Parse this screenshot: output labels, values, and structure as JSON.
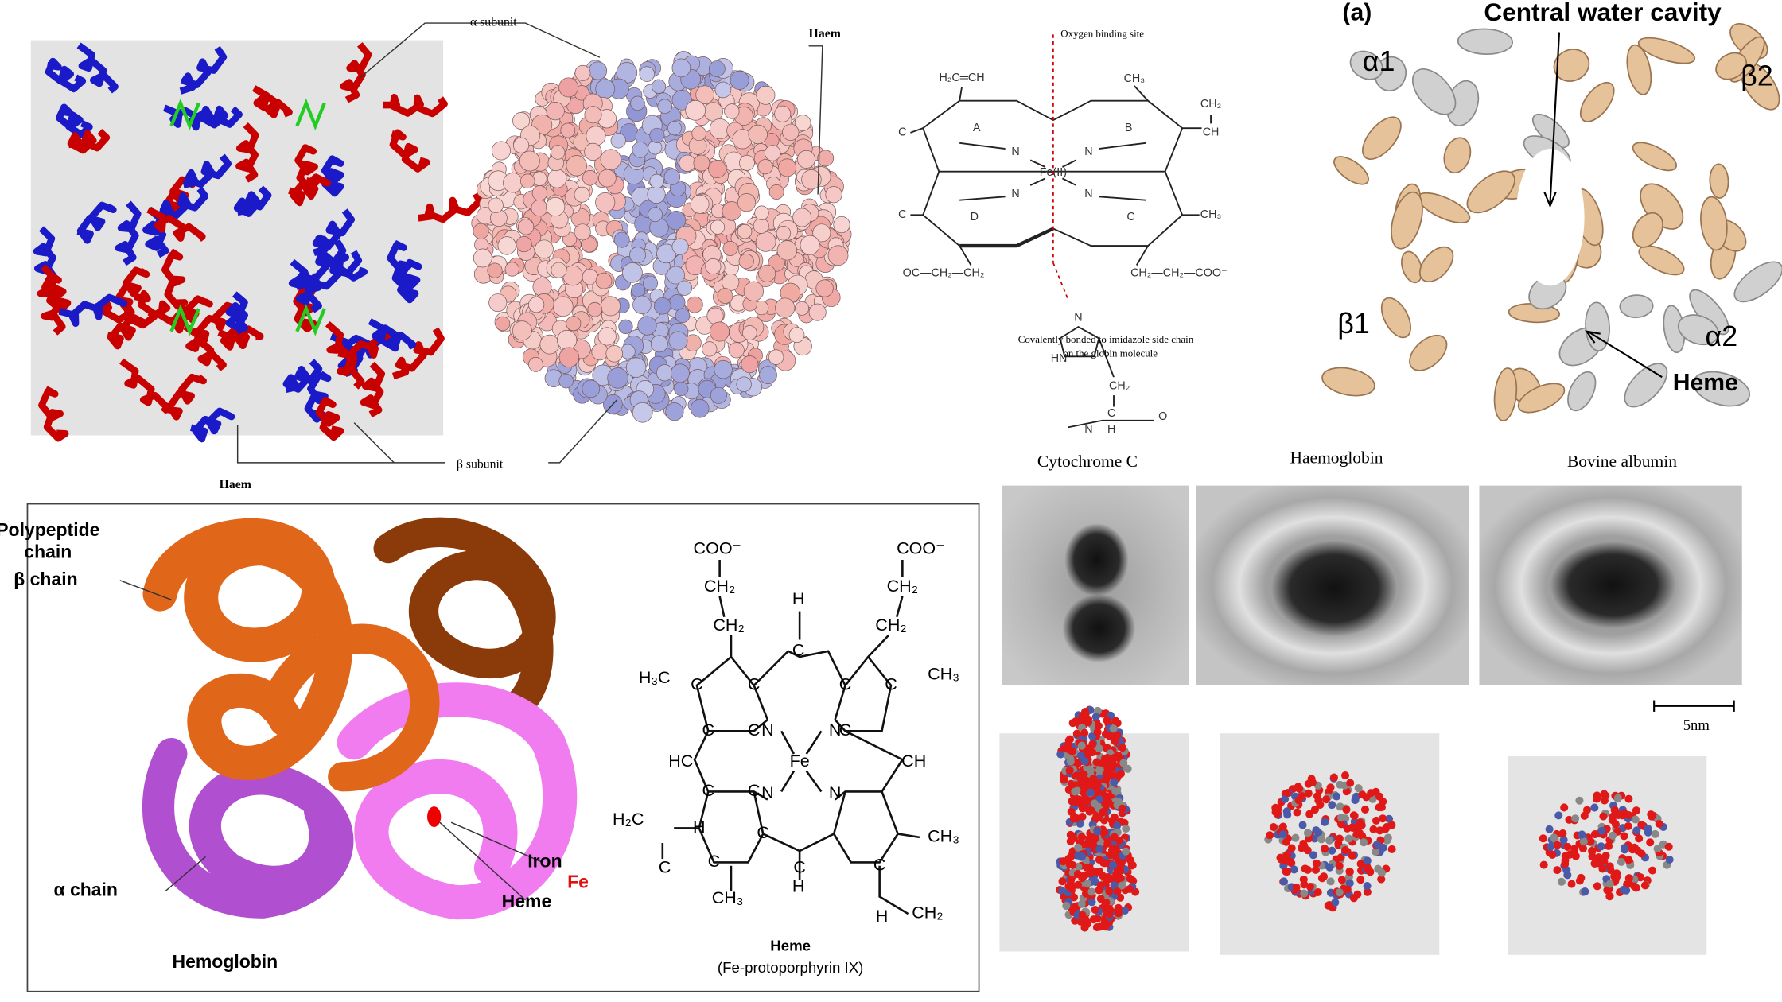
{
  "hemoglobin_ribbon": {
    "alpha_subunit": "α  subunit",
    "haem_top": "Haem",
    "haem_bottom": "Haem",
    "beta_subunit": "β  subunit"
  },
  "heme_structure_top": {
    "oxygen_site": "Oxygen binding site",
    "atoms": [
      "H₂C═CH",
      "CH₃",
      "A",
      "B",
      "CH₂",
      "CH",
      "C",
      "N",
      "N",
      "Fe(II)",
      "N",
      "N",
      "C",
      "D",
      "C",
      "CH₃",
      "OC—CH₂—CH₂",
      "CH₂—CH₂—COO⁻",
      "N",
      "HN",
      "CH₂",
      "C",
      "N",
      "H",
      "O"
    ],
    "note": [
      "Covalently bonded to imidazole side chain",
      "on the globin molecule"
    ]
  },
  "cavity_figure": {
    "panel_label": "(a)",
    "cavity_label": "Central water cavity",
    "subunits": [
      "α1",
      "β2",
      "β1",
      "α2"
    ],
    "heme_label": "Heme"
  },
  "em_images": {
    "titles": [
      "Cytochrome C",
      "Haemoglobin",
      "Bovine albumin"
    ],
    "scale_bar": "5nm"
  },
  "hemoglobin_model": {
    "polypeptide": [
      "Polypeptide",
      "chain"
    ],
    "beta_chain": "β chain",
    "alpha_chain": "α chain",
    "iron": "Iron",
    "fe": "Fe",
    "heme": "Heme",
    "name": "Hemoglobin"
  },
  "heme_structure_bottom": {
    "atoms": [
      "COO⁻",
      "CH₂",
      "CH₂",
      "COO⁻",
      "CH₂",
      "CH₂",
      "H",
      "C",
      "H₃C",
      "C",
      "C",
      "C",
      "C",
      "CH₃",
      "N",
      "N",
      "Fe",
      "N",
      "N",
      "HC",
      "C",
      "C",
      "CH",
      "H₂C",
      "C",
      "H",
      "C",
      "C",
      "C",
      "C",
      "C",
      "CH₃",
      "CH₃",
      "C",
      "H",
      "H",
      "C",
      "CH₂"
    ],
    "name": "Heme",
    "formula": "(Fe-protoporphyrin IX)"
  }
}
